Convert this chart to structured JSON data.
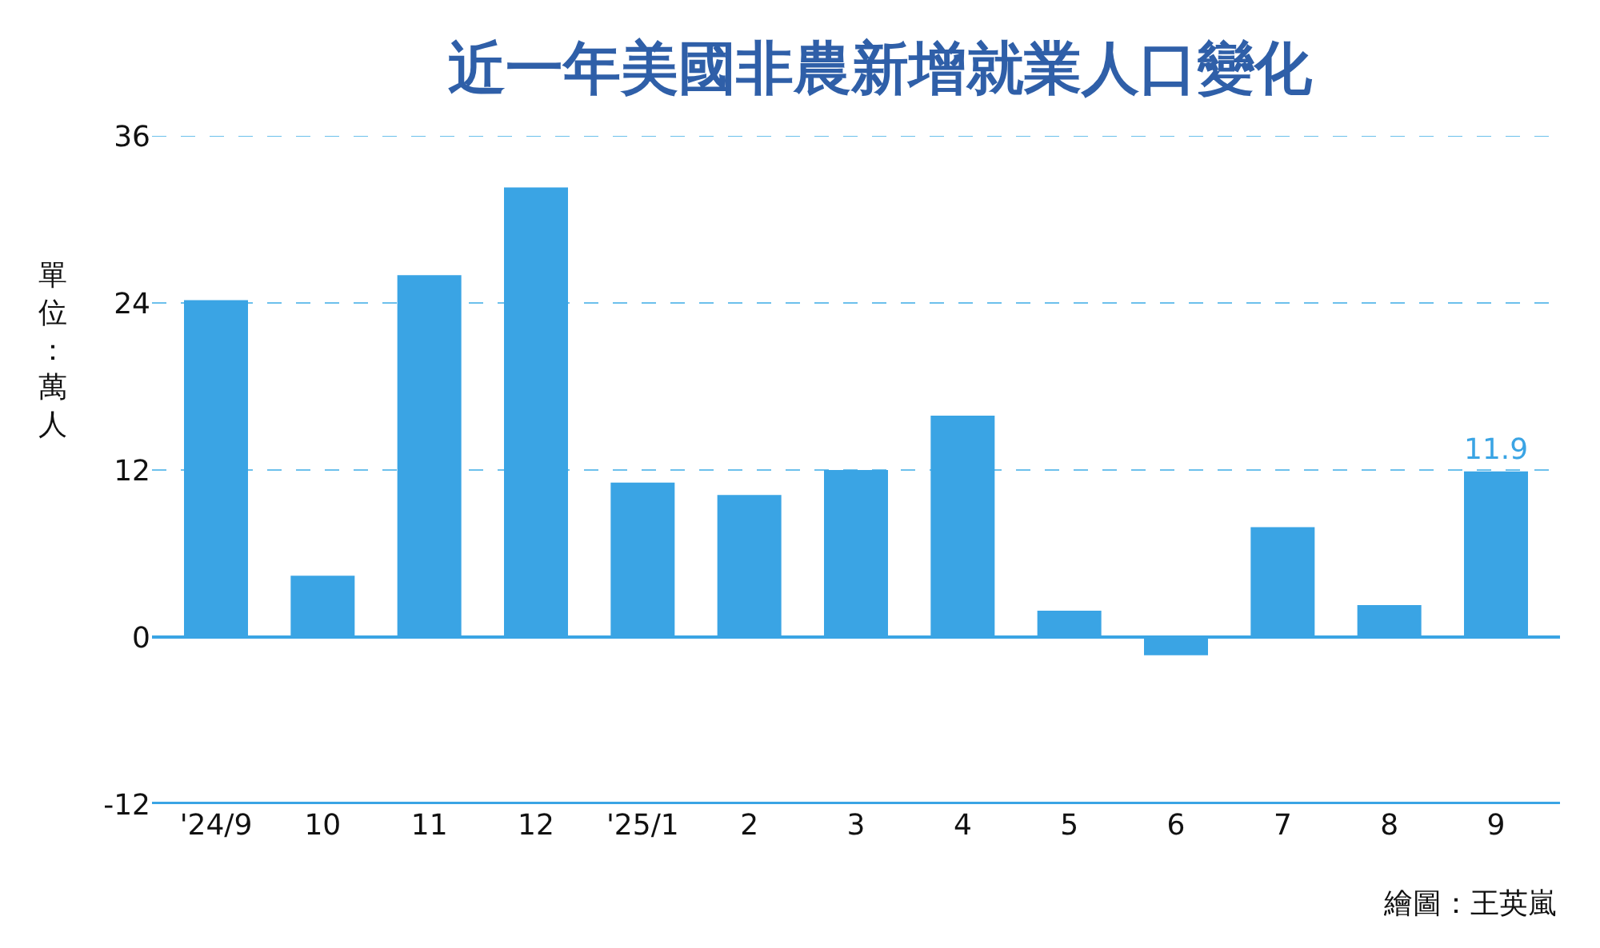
{
  "chart_data": {
    "type": "bar",
    "title": "近一年美國非農新增就業人口變化",
    "ylabel": "單位：萬人",
    "categories": [
      "'24/9",
      "10",
      "11",
      "12",
      "'25/1",
      "2",
      "3",
      "4",
      "5",
      "6",
      "7",
      "8",
      "9"
    ],
    "values": [
      24.2,
      4.4,
      26.0,
      32.3,
      11.1,
      10.2,
      12.0,
      15.9,
      1.9,
      -1.3,
      7.9,
      2.3,
      11.9
    ],
    "value_labels": [
      null,
      null,
      null,
      null,
      null,
      null,
      null,
      null,
      null,
      null,
      null,
      null,
      "11.9"
    ],
    "color": "#3aa4e4",
    "ylim": [
      -12,
      36
    ],
    "yticks": [
      -12,
      0,
      12,
      24,
      36
    ],
    "grid": "y",
    "ref_lines": [
      {
        "axis": "y",
        "value": 0,
        "color": "#3aa4e4"
      }
    ],
    "annotations": [
      "繪圖：王英嵐"
    ]
  }
}
